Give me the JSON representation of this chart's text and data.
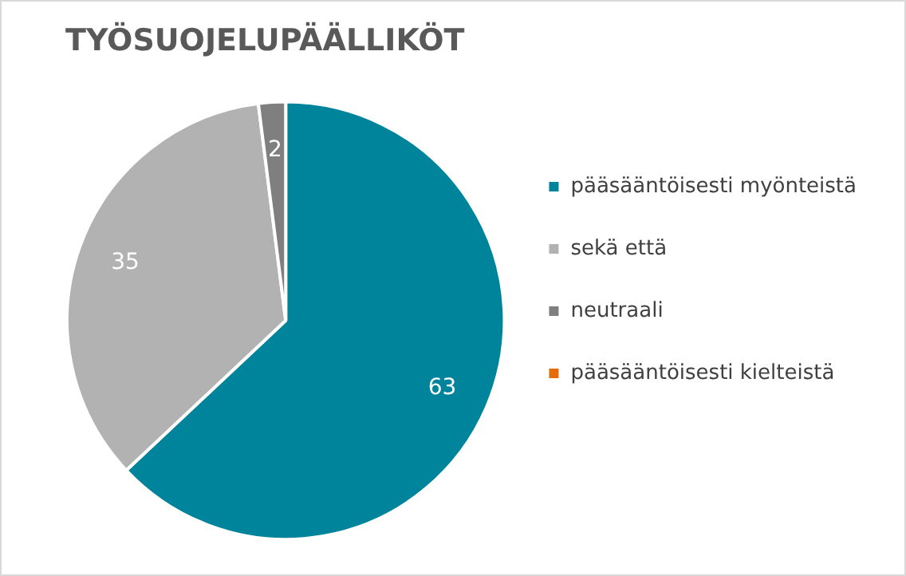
{
  "chart_data": {
    "type": "pie",
    "title": "TYÖSUOJELUPÄÄLLIKÖT",
    "categories": [
      "pääsääntöisesti myönteistä",
      "sekä että",
      "neutraali",
      "pääsääntöisesti kielteistä"
    ],
    "values": [
      63,
      35,
      2,
      0
    ],
    "colors": [
      "#00849b",
      "#b2b2b2",
      "#7f7f7f",
      "#e46c0a"
    ],
    "data_labels": true,
    "legend": "right"
  }
}
